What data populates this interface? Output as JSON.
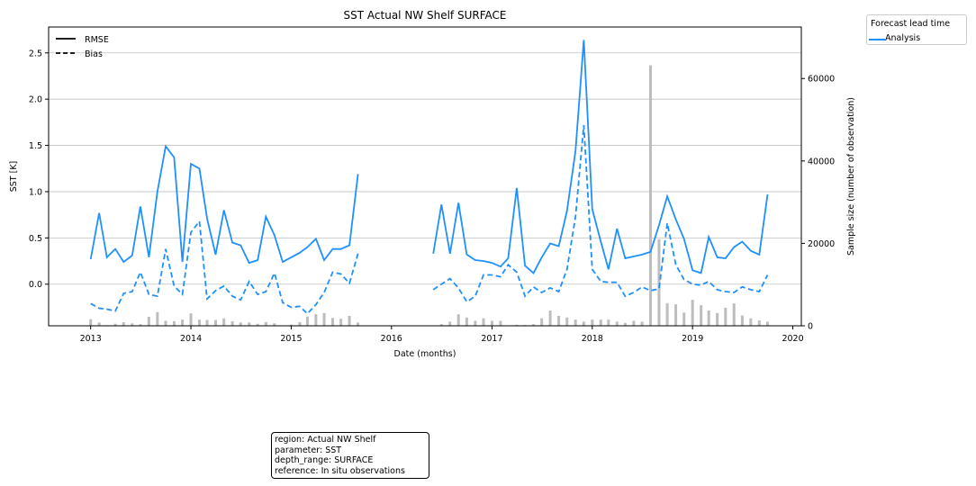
{
  "chart_data": {
    "type": "line",
    "title": "SST Actual NW Shelf SURFACE",
    "xlabel": "Date (months)",
    "ylabel": "SST [K]",
    "y2label": "Sample size (number of observation)",
    "xlim": [
      "2012-08-01",
      "2020-02-01"
    ],
    "ylim": [
      -0.45,
      2.78
    ],
    "y2lim": [
      0,
      72500
    ],
    "xticks": [
      "2013",
      "2014",
      "2015",
      "2016",
      "2017",
      "2018",
      "2019",
      "2020"
    ],
    "yticks": [
      0.0,
      0.5,
      1.0,
      1.5,
      2.0,
      2.5
    ],
    "yticklabels": [
      "0.0",
      "0.5",
      "1.0",
      "1.5",
      "2.0",
      "2.5"
    ],
    "y2ticks": [
      0,
      20000,
      40000,
      60000
    ],
    "y2ticklabels": [
      "0",
      "20000",
      "40000",
      "60000"
    ],
    "grid": "horizontal",
    "style_legend": {
      "placement": "upper-left",
      "entries": [
        {
          "label": "RMSE",
          "linestyle": "solid"
        },
        {
          "label": "Bias",
          "linestyle": "dashed"
        }
      ]
    },
    "lead_legend": {
      "title": "Forecast lead time",
      "entries": [
        {
          "label": "Analysis",
          "color": "#1e90ff"
        }
      ]
    },
    "colors": {
      "line": "#1e90ff",
      "bars": "#bdbdbd",
      "grid": "#c0c0c0"
    },
    "segments": [
      {
        "dates": [
          "2013-01",
          "2013-02",
          "2013-03",
          "2013-04",
          "2013-05",
          "2013-06",
          "2013-07",
          "2013-08",
          "2013-09",
          "2013-10",
          "2013-11",
          "2013-12",
          "2014-01",
          "2014-02",
          "2014-03",
          "2014-04",
          "2014-05",
          "2014-06",
          "2014-07",
          "2014-08",
          "2014-09",
          "2014-10",
          "2014-11",
          "2014-12",
          "2015-01",
          "2015-02",
          "2015-03",
          "2015-04",
          "2015-05",
          "2015-06",
          "2015-07",
          "2015-08",
          "2015-09"
        ],
        "rmse": [
          0.27,
          0.77,
          0.29,
          0.38,
          0.24,
          0.31,
          0.84,
          0.29,
          1.0,
          1.49,
          1.37,
          0.24,
          1.3,
          1.25,
          0.71,
          0.32,
          0.8,
          0.45,
          0.42,
          0.23,
          0.26,
          0.73,
          0.53,
          0.24,
          0.29,
          0.34,
          0.4,
          0.49,
          0.26,
          0.38,
          0.38,
          0.42,
          1.19
        ],
        "bias": [
          -0.21,
          -0.26,
          -0.27,
          -0.29,
          -0.1,
          -0.08,
          0.13,
          -0.11,
          -0.13,
          0.38,
          -0.02,
          -0.11,
          0.56,
          0.68,
          -0.16,
          -0.07,
          -0.02,
          -0.13,
          -0.17,
          0.03,
          -0.11,
          -0.08,
          0.12,
          -0.2,
          -0.25,
          -0.24,
          -0.32,
          -0.22,
          -0.09,
          0.13,
          0.11,
          0.01,
          0.33
        ],
        "count": [
          1600,
          800,
          150,
          500,
          900,
          600,
          400,
          2200,
          3300,
          1200,
          1100,
          1500,
          3000,
          1500,
          1400,
          1400,
          1800,
          1100,
          800,
          800,
          500,
          900,
          600,
          100,
          300,
          900,
          2200,
          2800,
          3100,
          1900,
          1700,
          2400,
          800
        ]
      },
      {
        "dates": [
          "2016-06",
          "2016-07",
          "2016-08",
          "2016-09",
          "2016-10",
          "2016-11",
          "2016-12",
          "2017-01",
          "2017-02",
          "2017-03",
          "2017-04",
          "2017-05",
          "2017-06",
          "2017-07",
          "2017-08",
          "2017-09",
          "2017-10",
          "2017-11",
          "2017-12",
          "2018-01",
          "2018-02",
          "2018-03",
          "2018-04",
          "2018-05",
          "2018-06",
          "2018-07",
          "2018-08",
          "2018-09",
          "2018-10",
          "2018-11",
          "2018-12",
          "2019-01",
          "2019-02",
          "2019-03",
          "2019-04",
          "2019-05",
          "2019-06",
          "2019-07",
          "2019-08",
          "2019-09",
          "2019-10"
        ],
        "rmse": [
          0.33,
          0.86,
          0.33,
          0.88,
          0.32,
          0.26,
          0.25,
          0.23,
          0.19,
          0.28,
          1.04,
          0.2,
          0.12,
          0.29,
          0.44,
          0.41,
          0.79,
          1.44,
          2.64,
          0.81,
          0.46,
          0.16,
          0.6,
          0.28,
          0.3,
          0.32,
          0.35,
          0.64,
          0.95,
          0.7,
          0.49,
          0.15,
          0.12,
          0.51,
          0.29,
          0.28,
          0.4,
          0.46,
          0.36,
          0.32,
          0.97
        ],
        "bias": [
          -0.06,
          0.0,
          0.06,
          -0.04,
          -0.19,
          -0.13,
          0.1,
          0.1,
          0.08,
          0.21,
          0.13,
          -0.13,
          -0.03,
          -0.09,
          -0.04,
          -0.08,
          0.16,
          0.73,
          1.72,
          0.16,
          0.03,
          0.02,
          0.02,
          -0.13,
          -0.09,
          -0.03,
          -0.07,
          -0.05,
          0.66,
          0.21,
          0.05,
          0.0,
          -0.01,
          0.03,
          -0.06,
          -0.08,
          -0.09,
          -0.03,
          -0.06,
          -0.08,
          0.1
        ],
        "count": [
          100,
          400,
          1000,
          2800,
          2000,
          1200,
          1800,
          1200,
          1200,
          100,
          250,
          200,
          400,
          1800,
          3700,
          2400,
          2000,
          1500,
          1000,
          1500,
          1500,
          1500,
          1000,
          700,
          1200,
          1000,
          63200,
          21000,
          5500,
          5200,
          3200,
          6300,
          5000,
          3700,
          3100,
          4400,
          5400,
          2500,
          1800,
          1300,
          1000
        ]
      }
    ]
  },
  "infobox": {
    "lines": [
      "region: Actual NW Shelf",
      "parameter: SST",
      "depth_range: SURFACE",
      "reference: In situ observations"
    ]
  }
}
